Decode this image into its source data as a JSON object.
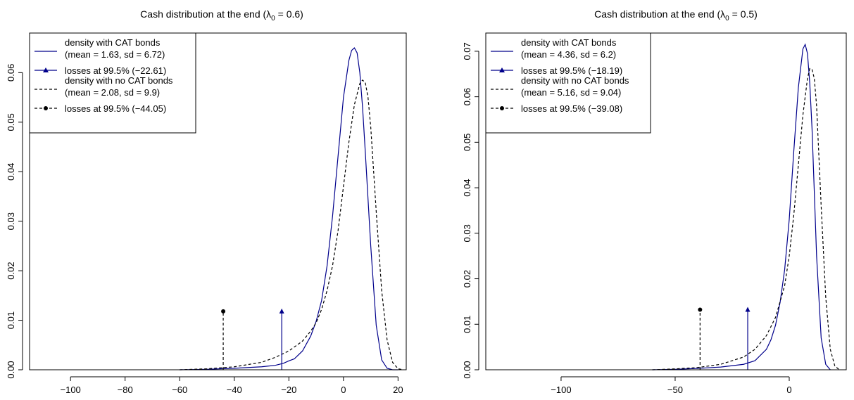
{
  "chart_data": [
    {
      "type": "line",
      "title_prefix": "Cash distribution at the end (",
      "title_lambda": "λ",
      "title_subscript": "0",
      "title_suffix": " = 0.6)",
      "xlim": [
        -115,
        23
      ],
      "ylim": [
        0,
        0.068
      ],
      "x_ticks": [
        -100,
        -80,
        -60,
        -40,
        -20,
        0,
        20
      ],
      "x_tick_labels": [
        "−100",
        "−80",
        "−60",
        "−40",
        "−20",
        "0",
        "20"
      ],
      "y_ticks": [
        0,
        0.01,
        0.02,
        0.03,
        0.04,
        0.05,
        0.06
      ],
      "y_tick_labels": [
        "0.00",
        "0.01",
        "0.02",
        "0.03",
        "0.04",
        "0.05",
        "0.06"
      ],
      "legend": {
        "placement": "top-left",
        "entries": [
          {
            "line1": "density with CAT bonds",
            "line2": "(mean = 1.63, sd = 6.72)"
          },
          {
            "line1": "losses at 99.5% (−22.61)"
          },
          {
            "line1": "density with no CAT bonds",
            "line2": "(mean = 2.08, sd = 9.9)"
          },
          {
            "line1": "losses at 99.5% (−44.05)"
          }
        ]
      },
      "series": [
        {
          "color": "#00008B",
          "dash": "solid",
          "x": [
            -60,
            -50,
            -40,
            -30,
            -25,
            -22,
            -20,
            -18,
            -15,
            -12,
            -10,
            -8,
            -6,
            -4,
            -2,
            0,
            2,
            3,
            4,
            5,
            6,
            7,
            8,
            10,
            12,
            14,
            16,
            18,
            20
          ],
          "y": [
            0,
            0.0001,
            0.0003,
            0.0006,
            0.0009,
            0.0013,
            0.0018,
            0.0022,
            0.0038,
            0.0068,
            0.0098,
            0.014,
            0.021,
            0.031,
            0.043,
            0.055,
            0.0625,
            0.0645,
            0.065,
            0.064,
            0.06,
            0.053,
            0.044,
            0.025,
            0.009,
            0.002,
            0.0003,
            0,
            0
          ]
        },
        {
          "color": "#000000",
          "dash": "dashed",
          "x": [
            -60,
            -50,
            -40,
            -30,
            -25,
            -20,
            -15,
            -12,
            -10,
            -8,
            -6,
            -4,
            -2,
            0,
            2,
            4,
            6,
            7,
            8,
            9,
            10,
            12,
            14,
            16,
            18,
            20,
            22
          ],
          "y": [
            0,
            0.0002,
            0.0006,
            0.0015,
            0.0025,
            0.0038,
            0.0058,
            0.0078,
            0.0095,
            0.0122,
            0.016,
            0.021,
            0.028,
            0.037,
            0.046,
            0.0535,
            0.0578,
            0.0585,
            0.058,
            0.055,
            0.049,
            0.032,
            0.016,
            0.006,
            0.0015,
            0.0002,
            0
          ]
        }
      ],
      "markers": [
        {
          "x": -22.61,
          "y": 0.0118,
          "shape": "triangle",
          "color": "#00008B",
          "dash": "solid"
        },
        {
          "x": -44.05,
          "y": 0.0118,
          "shape": "circle",
          "color": "#000000",
          "dash": "dashed"
        }
      ],
      "baseline_color": "#AAAAAA",
      "grid": false
    },
    {
      "type": "line",
      "title_prefix": "Cash distribution at the end (",
      "title_lambda": "λ",
      "title_subscript": "0",
      "title_suffix": " = 0.5)",
      "xlim": [
        -133,
        25
      ],
      "ylim": [
        0,
        0.074
      ],
      "x_ticks": [
        -100,
        -50,
        0
      ],
      "x_tick_labels": [
        "−100",
        "−50",
        "0"
      ],
      "y_ticks": [
        0,
        0.01,
        0.02,
        0.03,
        0.04,
        0.05,
        0.06,
        0.07
      ],
      "y_tick_labels": [
        "0.00",
        "0.01",
        "0.02",
        "0.03",
        "0.04",
        "0.05",
        "0.06",
        "0.07"
      ],
      "legend": {
        "placement": "top-left",
        "entries": [
          {
            "line1": "density with CAT bonds",
            "line2": "(mean = 4.36, sd = 6.2)"
          },
          {
            "line1": "losses at 99.5% (−18.19)"
          },
          {
            "line1": "density with no CAT bonds",
            "line2": "(mean = 5.16, sd = 9.04)"
          },
          {
            "line1": "losses at 99.5% (−39.08)"
          }
        ]
      },
      "series": [
        {
          "color": "#00008B",
          "dash": "solid",
          "x": [
            -60,
            -50,
            -40,
            -30,
            -20,
            -15,
            -10,
            -8,
            -6,
            -4,
            -2,
            0,
            2,
            4,
            6,
            7,
            8,
            9,
            10,
            12,
            14,
            16,
            18
          ],
          "y": [
            0,
            0.0001,
            0.0003,
            0.0006,
            0.0012,
            0.002,
            0.0045,
            0.0066,
            0.0098,
            0.0148,
            0.022,
            0.033,
            0.048,
            0.062,
            0.0705,
            0.0715,
            0.0695,
            0.063,
            0.053,
            0.025,
            0.007,
            0.0012,
            0
          ]
        },
        {
          "color": "#000000",
          "dash": "dashed",
          "x": [
            -60,
            -50,
            -40,
            -30,
            -20,
            -15,
            -10,
            -6,
            -2,
            0,
            2,
            4,
            6,
            8,
            9,
            10,
            11,
            12,
            14,
            16,
            18,
            20,
            22
          ],
          "y": [
            0,
            0.0002,
            0.0005,
            0.0012,
            0.0028,
            0.0045,
            0.0075,
            0.0115,
            0.0185,
            0.025,
            0.034,
            0.045,
            0.056,
            0.064,
            0.0662,
            0.066,
            0.064,
            0.058,
            0.036,
            0.016,
            0.0045,
            0.0008,
            0
          ]
        }
      ],
      "markers": [
        {
          "x": -18.19,
          "y": 0.0132,
          "shape": "triangle",
          "color": "#00008B",
          "dash": "solid"
        },
        {
          "x": -39.08,
          "y": 0.0132,
          "shape": "circle",
          "color": "#000000",
          "dash": "dashed"
        }
      ],
      "baseline_color": "#AAAAAA",
      "grid": false
    }
  ]
}
